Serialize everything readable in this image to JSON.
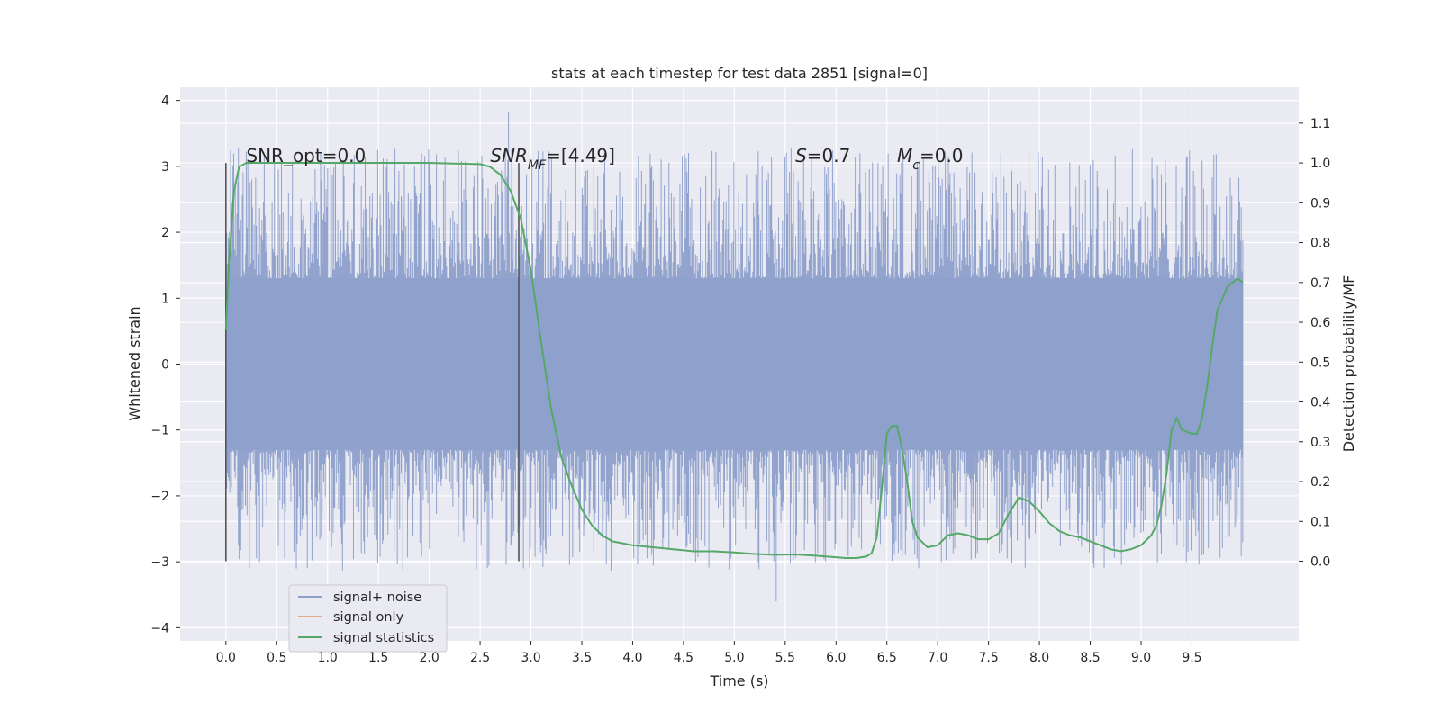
{
  "chart_data": {
    "type": "line",
    "title": "stats at each timestep for test data 2851 [signal=0]",
    "xlabel": "Time (s)",
    "ylabel": "Whitened strain",
    "y2label": "Detection probability/MF",
    "xlim": [
      -0.45,
      10.55
    ],
    "ylim": [
      -4.2,
      4.2
    ],
    "y2lim": [
      -0.2,
      1.19
    ],
    "x_ticks": [
      "0.0",
      "0.5",
      "1.0",
      "1.5",
      "2.0",
      "2.5",
      "3.0",
      "3.5",
      "4.0",
      "4.5",
      "5.0",
      "5.5",
      "6.0",
      "6.5",
      "7.0",
      "7.5",
      "8.0",
      "8.5",
      "9.0",
      "9.5"
    ],
    "y_ticks": [
      "4",
      "3",
      "2",
      "1",
      "0",
      "−1",
      "−2",
      "−3",
      "−4"
    ],
    "y2_ticks": [
      "1.1",
      "1.0",
      "0.9",
      "0.8",
      "0.7",
      "0.6",
      "0.5",
      "0.4",
      "0.3",
      "0.2",
      "0.1",
      "0.0"
    ],
    "grid": true,
    "legend_position": "lower-left",
    "colors": {
      "background": "#eaeaf2",
      "grid": "#ffffff",
      "strain": "#8da0cb",
      "signal_only": "#e9a68a",
      "statistics": "#55a868",
      "marker": "#555555"
    },
    "annotations": [
      {
        "text_main": "SNR_opt=0.0",
        "x": 0.2,
        "y2": 1.0
      },
      {
        "text_main": "SNR",
        "sub": "MF",
        "text_rest": "=[4.49]",
        "x": 2.6,
        "y2": 1.0
      },
      {
        "text_main": "S",
        "text_rest": "=0.7",
        "x": 5.6,
        "y2": 1.0
      },
      {
        "text_main": "M",
        "sub": "c",
        "text_rest": "=0.0",
        "x": 6.6,
        "y2": 1.0
      }
    ],
    "vertical_markers": [
      0.0,
      2.88
    ],
    "series": [
      {
        "name": "signal+ noise",
        "kind": "noise",
        "x_range": [
          0,
          10
        ],
        "core_min": -1.3,
        "core_max": 1.3,
        "peak_min": -4.0,
        "peak_max": 4.05
      },
      {
        "name": "signal only",
        "kind": "flat",
        "values": []
      },
      {
        "name": "signal statistics",
        "kind": "line",
        "x": [
          0.0,
          0.03,
          0.08,
          0.13,
          0.2,
          0.3,
          0.5,
          1.0,
          1.5,
          2.0,
          2.5,
          2.6,
          2.7,
          2.8,
          2.9,
          3.0,
          3.1,
          3.2,
          3.3,
          3.4,
          3.5,
          3.6,
          3.7,
          3.8,
          3.9,
          4.0,
          4.2,
          4.4,
          4.6,
          4.8,
          5.0,
          5.2,
          5.4,
          5.6,
          5.8,
          6.0,
          6.1,
          6.2,
          6.3,
          6.35,
          6.4,
          6.45,
          6.5,
          6.55,
          6.6,
          6.65,
          6.7,
          6.75,
          6.8,
          6.9,
          7.0,
          7.1,
          7.2,
          7.3,
          7.4,
          7.5,
          7.6,
          7.7,
          7.8,
          7.9,
          8.0,
          8.1,
          8.2,
          8.3,
          8.4,
          8.5,
          8.6,
          8.7,
          8.8,
          8.9,
          9.0,
          9.1,
          9.15,
          9.2,
          9.25,
          9.3,
          9.35,
          9.4,
          9.5,
          9.55,
          9.6,
          9.65,
          9.7,
          9.75,
          9.8,
          9.85,
          9.9,
          9.95,
          10.0
        ],
        "values": [
          0.58,
          0.75,
          0.93,
          0.99,
          1.0,
          1.0,
          1.0,
          1.0,
          1.0,
          1.0,
          0.997,
          0.99,
          0.97,
          0.93,
          0.86,
          0.73,
          0.55,
          0.38,
          0.26,
          0.19,
          0.13,
          0.09,
          0.065,
          0.05,
          0.045,
          0.04,
          0.035,
          0.03,
          0.025,
          0.025,
          0.022,
          0.018,
          0.016,
          0.017,
          0.014,
          0.01,
          0.008,
          0.008,
          0.012,
          0.02,
          0.06,
          0.18,
          0.32,
          0.34,
          0.34,
          0.28,
          0.2,
          0.1,
          0.06,
          0.035,
          0.04,
          0.065,
          0.07,
          0.065,
          0.055,
          0.055,
          0.07,
          0.12,
          0.16,
          0.15,
          0.125,
          0.095,
          0.075,
          0.065,
          0.06,
          0.05,
          0.04,
          0.03,
          0.025,
          0.03,
          0.04,
          0.065,
          0.09,
          0.14,
          0.22,
          0.33,
          0.36,
          0.33,
          0.32,
          0.32,
          0.36,
          0.44,
          0.54,
          0.63,
          0.66,
          0.69,
          0.7,
          0.71,
          0.7
        ]
      }
    ]
  }
}
